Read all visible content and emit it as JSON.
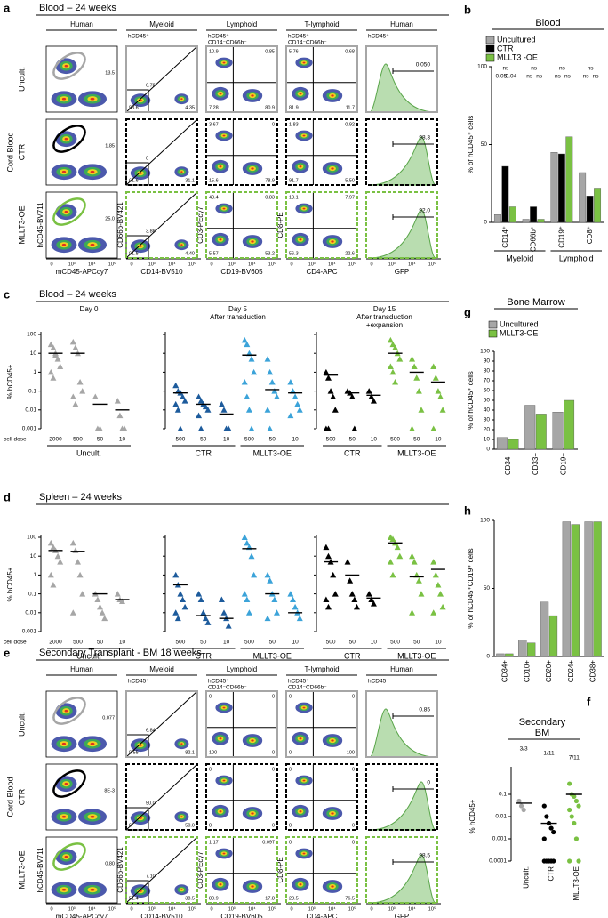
{
  "flow_a": {
    "letter": "a",
    "title": "Blood – 24 weeks",
    "group_label": "Cord Blood",
    "ticks": [
      "0",
      "10³",
      "10⁴",
      "10⁵"
    ],
    "columns": [
      {
        "header": "Human",
        "x_label": "mCD45-APCcy7",
        "y_label": "hCD45-BV711"
      },
      {
        "header": "Myeloid",
        "x_label": "CD14-BV510",
        "y_label": "CD66b-BV421",
        "gate": [
          "hCD45⁺"
        ]
      },
      {
        "header": "Lymphoid",
        "x_label": "CD19-BV605",
        "y_label": "CD3-PEcy7",
        "gate": [
          "hCD45⁺",
          "CD14⁻CD66b⁻"
        ]
      },
      {
        "header": "T-lymphoid",
        "x_label": "CD4-APC",
        "y_label": "CD8-PE",
        "gate": [
          "hCD45⁺",
          "CD14⁻CD66b⁻"
        ]
      },
      {
        "header": "Human",
        "x_label": "GFP",
        "gate": [
          "hCD45⁺"
        ]
      }
    ],
    "rows": [
      {
        "label": "Uncult.",
        "color": "#a6a6a6",
        "values": [
          [
            "13.5"
          ],
          [
            "6.78",
            "88.6",
            "4.35"
          ],
          [
            "10.9",
            "0.85",
            "7.28",
            "80.9"
          ],
          [
            "5.76",
            "0.68",
            "81.9",
            "11.7"
          ],
          [
            "0.050"
          ]
        ]
      },
      {
        "label": "CTR",
        "color": "#000000",
        "values": [
          [
            "1.85"
          ],
          [
            "0",
            "61.6",
            "31.1"
          ],
          [
            "3.67",
            "0",
            "15.6",
            "78.9"
          ],
          [
            "1.83",
            "0.92",
            "91.7",
            "5.50"
          ],
          [
            "98.3"
          ]
        ]
      },
      {
        "label": "MLLT3-OE",
        "color": "#7ac143",
        "values": [
          [
            "25.0"
          ],
          [
            "3.88",
            "91.5",
            "4.40"
          ],
          [
            "40.4",
            "0.83",
            "5.57",
            "53.2"
          ],
          [
            "13.1",
            "7.97",
            "56.3",
            "22.6"
          ],
          [
            "92.0"
          ]
        ]
      }
    ]
  },
  "bars_b": {
    "letter": "b",
    "title": "Blood",
    "ylabel": "% of hCD45⁺ cells",
    "ylim": [
      0,
      100
    ],
    "yticks": [
      0,
      50,
      100
    ],
    "categories": [
      "CD14⁺",
      "CD66b⁺",
      "CD19⁺",
      "CD8⁺"
    ],
    "groups": [
      "Myeloid",
      "Lymphoid"
    ],
    "series": [
      {
        "name": "Uncultured",
        "color": "#a6a6a6",
        "values": [
          5,
          2,
          45,
          32
        ]
      },
      {
        "name": "CTR",
        "color": "#000000",
        "values": [
          36,
          10,
          44,
          17
        ]
      },
      {
        "name": "MLLT3 -OE",
        "color": "#7ac143",
        "values": [
          10,
          2,
          55,
          22
        ]
      }
    ],
    "annotations": [
      [
        "ns",
        "0.05",
        "0.04"
      ],
      [
        "ns",
        "ns",
        "ns"
      ],
      [
        "ns",
        "ns",
        "ns"
      ],
      [
        "ns",
        "ns",
        "ns"
      ]
    ]
  },
  "dots_c": {
    "letter": "c",
    "title": "Blood – 24 weeks",
    "ylabel": "% hCD45+",
    "dose_label": "cell dose",
    "log": true,
    "ylim": [
      0.001,
      100
    ],
    "yticks": [
      0.001,
      0.01,
      0.1,
      1,
      10,
      100
    ],
    "panels": [
      {
        "title": [
          "Day 0"
        ],
        "groups": [
          {
            "name": "Uncult.",
            "color": "#a6a6a6",
            "doses": [
              "2000",
              "500",
              "50",
              "10"
            ],
            "points": [
              [
                30,
                20,
                10,
                5,
                2,
                1,
                0.5,
                8
              ],
              [
                40,
                20,
                10,
                0.3,
                0.1,
                0.05,
                0.02
              ],
              [
                0.05,
                0.001,
                0.001
              ],
              [
                0.03,
                0.005,
                0.001,
                0.001
              ]
            ],
            "medians": [
              10,
              10,
              0.02,
              0.01
            ]
          }
        ]
      },
      {
        "title": [
          "Day 5",
          "After transduction"
        ],
        "groups": [
          {
            "name": "CTR",
            "color": "#1d5b9c",
            "doses": [
              "500",
              "50",
              "10"
            ],
            "points": [
              [
                0.2,
                0.1,
                0.08,
                0.05,
                0.03,
                0.02,
                0.01,
                0.001
              ],
              [
                0.05,
                0.03,
                0.02,
                0.015,
                0.01,
                0.005,
                0.001
              ],
              [
                0.02,
                0.01,
                0.001,
                0.001
              ]
            ],
            "medians": [
              0.08,
              0.02,
              0.006
            ]
          },
          {
            "name": "MLLT3-OE",
            "color": "#3ba3d9",
            "doses": [
              "500",
              "50",
              "10"
            ],
            "points": [
              [
                50,
                30,
                10,
                5,
                1,
                0.3,
                0.05,
                0.01,
                0.001
              ],
              [
                5,
                1,
                0.3,
                0.1,
                0.05,
                0.01,
                0.001
              ],
              [
                0.3,
                0.1,
                0.05,
                0.02,
                0.01,
                0.005
              ]
            ],
            "medians": [
              8,
              0.12,
              0.08
            ]
          }
        ]
      },
      {
        "title": [
          "Day 15",
          "After transduction",
          "+expansion"
        ],
        "groups": [
          {
            "name": "CTR",
            "color": "#000000",
            "doses": [
              "500",
              "50",
              "10"
            ],
            "points": [
              [
                1,
                0.5,
                0.1,
                0.05,
                0.01,
                0.001,
                0.001
              ],
              [
                0.1,
                0.08,
                0.05,
                0.001
              ],
              [
                0.1,
                0.05,
                0.03
              ]
            ],
            "medians": [
              0.7,
              0.08,
              0.06
            ]
          },
          {
            "name": "MLLT3-OE",
            "color": "#7ac143",
            "doses": [
              "500",
              "50",
              "10"
            ],
            "points": [
              [
                50,
                30,
                20,
                10,
                5,
                2,
                1,
                0.3
              ],
              [
                5,
                2,
                0.5,
                0.1,
                0.01,
                0.001
              ],
              [
                2,
                0.5,
                0.1,
                0.05,
                0.01,
                0.001
              ]
            ],
            "medians": [
              10,
              1,
              0.3
            ]
          }
        ]
      }
    ]
  },
  "dots_d": {
    "letter": "d",
    "title": "Spleen – 24 weeks",
    "ylabel": "% hCD45+",
    "dose_label": "cell dose",
    "log": true,
    "ylim": [
      0.001,
      100
    ],
    "yticks": [
      0.001,
      0.01,
      0.1,
      1,
      10,
      100
    ],
    "panels": [
      {
        "groups": [
          {
            "name": "Uncult.",
            "color": "#a6a6a6",
            "doses": [
              "2000",
              "500",
              "50",
              "10"
            ],
            "points": [
              [
                50,
                30,
                20,
                10,
                5,
                1,
                0.3
              ],
              [
                50,
                20,
                5,
                1,
                0.1,
                0.01
              ],
              [
                0.1,
                0.05,
                0.02,
                0.01,
                0.005
              ],
              [
                0.1,
                0.05,
                0.04
              ]
            ],
            "medians": [
              20,
              18,
              0.1,
              0.05
            ]
          }
        ]
      },
      {
        "groups": [
          {
            "name": "CTR",
            "color": "#1d5b9c",
            "doses": [
              "500",
              "50",
              "10"
            ],
            "points": [
              [
                1,
                0.3,
                0.1,
                0.05,
                0.02,
                0.01,
                0.005
              ],
              [
                0.1,
                0.05,
                0.01,
                0.005,
                0.003
              ],
              [
                0.05,
                0.01,
                0.005,
                0.002
              ]
            ],
            "medians": [
              0.3,
              0.007,
              0.005
            ]
          },
          {
            "name": "MLLT3-OE",
            "color": "#3ba3d9",
            "doses": [
              "500",
              "50",
              "10"
            ],
            "points": [
              [
                100,
                50,
                30,
                10,
                1,
                0.1,
                0.05,
                0.01
              ],
              [
                1,
                0.5,
                0.1,
                0.05,
                0.01,
                0.005
              ],
              [
                0.1,
                0.05,
                0.02,
                0.01,
                0.005
              ]
            ],
            "medians": [
              25,
              0.1,
              0.01
            ]
          }
        ]
      },
      {
        "groups": [
          {
            "name": "CTR",
            "color": "#000000",
            "doses": [
              "500",
              "50",
              "10"
            ],
            "points": [
              [
                30,
                10,
                5,
                1,
                0.1,
                0.05,
                0.02
              ],
              [
                5,
                0.5,
                0.1,
                0.05,
                0.02
              ],
              [
                0.1,
                0.05,
                0.03
              ]
            ],
            "medians": [
              5,
              1,
              0.06
            ]
          },
          {
            "name": "MLLT3-OE",
            "color": "#7ac143",
            "doses": [
              "500",
              "50",
              "10"
            ],
            "points": [
              [
                100,
                80,
                50,
                30,
                10,
                5,
                1
              ],
              [
                10,
                5,
                1,
                0.5,
                0.1,
                0.01
              ],
              [
                5,
                1,
                0.3,
                0.1,
                0.02,
                0.01
              ]
            ],
            "medians": [
              50,
              0.8,
              2
            ]
          }
        ]
      }
    ]
  },
  "bars_g": {
    "letter": "g",
    "title": "Bone Marrow",
    "ylabel": "% of hCD45⁺ cells",
    "ylim": [
      0,
      100
    ],
    "yticks": [
      0,
      10,
      20,
      30,
      40,
      50,
      60,
      70,
      80,
      90,
      100
    ],
    "categories": [
      "CD34+",
      "CD33+",
      "CD19+"
    ],
    "series": [
      {
        "name": "Uncultured",
        "color": "#a6a6a6",
        "values": [
          12,
          45,
          38
        ]
      },
      {
        "name": "MLLT3-OE",
        "color": "#7ac143",
        "values": [
          10,
          36,
          50
        ]
      }
    ]
  },
  "bars_h": {
    "letter": "h",
    "ylabel": "% of hCD45⁺CD19⁺ cells",
    "ylim": [
      0,
      100
    ],
    "yticks": [
      0,
      50,
      100
    ],
    "categories": [
      "CD34+",
      "CD10+",
      "CD20+",
      "CD24+",
      "CD38+"
    ],
    "series": [
      {
        "color": "#a6a6a6",
        "values": [
          2,
          12,
          40,
          99,
          99
        ]
      },
      {
        "color": "#7ac143",
        "values": [
          2,
          10,
          30,
          97,
          99
        ]
      }
    ]
  },
  "flow_e": {
    "letter": "e",
    "title": "Secondary Transplant - BM 18 weeks",
    "group_label": "Cord Blood",
    "ticks": [
      "0",
      "10³",
      "10⁴",
      "10⁵"
    ],
    "columns": [
      {
        "header": "Human",
        "x_label": "mCD45-APCcy7",
        "y_label": "hCD45-BV711"
      },
      {
        "header": "Myeloid",
        "x_label": "CD14-BV510",
        "y_label": "CD66b-BV421",
        "gate": [
          "hCD45⁺"
        ]
      },
      {
        "header": "Lymphoid",
        "x_label": "CD19-BV605",
        "y_label": "CD3-PEcy7",
        "gate": [
          "hCD45⁺",
          "CD14⁻CD66b⁻"
        ]
      },
      {
        "header": "T-lymphoid",
        "x_label": "CD4-APC",
        "y_label": "CD8-PE",
        "gate": [
          "hCD45⁺",
          "CD14⁻CD66b⁻"
        ]
      },
      {
        "header": "Human",
        "x_label": "GFP",
        "gate": [
          "hCD45"
        ]
      }
    ],
    "rows": [
      {
        "label": "Uncult.",
        "color": "#a6a6a6",
        "values": [
          [
            "0.077"
          ],
          [
            "6.84",
            "8.55",
            "82.1"
          ],
          [
            "0",
            "0",
            "100",
            "0"
          ],
          [
            "0",
            "0",
            "0",
            "100"
          ],
          [
            "0.85"
          ]
        ]
      },
      {
        "label": "CTR",
        "color": "#000000",
        "values": [
          [
            "8E-3"
          ],
          [
            "50.0",
            "0",
            "50.0"
          ],
          [
            "0",
            "0",
            "0",
            "0"
          ],
          [
            "0",
            "0",
            "0",
            "0"
          ],
          [
            "0"
          ]
        ]
      },
      {
        "label": "MLLT3-OE",
        "color": "#7ac143",
        "values": [
          [
            "0.80"
          ],
          [
            "7.10",
            "51.4",
            "38.5"
          ],
          [
            "1.17",
            "0.097",
            "80.9",
            "17.8"
          ],
          [
            "0",
            "0",
            "23.5",
            "76.5"
          ],
          [
            "98.5"
          ]
        ]
      }
    ]
  },
  "dots_f": {
    "letter": "f",
    "title": [
      "Secondary",
      "BM"
    ],
    "ylabel": "% hCD45+",
    "log": true,
    "ylim": [
      0.0001,
      1
    ],
    "yticks": [
      0.0001,
      0.001,
      0.01,
      0.1
    ],
    "groups": [
      {
        "name": "Uncult.",
        "color": "#a6a6a6",
        "fraction": "3/3",
        "points": [
          0.05,
          0.03,
          0.02
        ],
        "median": 0.04
      },
      {
        "name": "CTR",
        "color": "#000000",
        "fraction": "1/11",
        "points": [
          0.03,
          0.01,
          0.005,
          0.003,
          0.002,
          0.001,
          0.0001,
          0.0001,
          0.0001,
          0.0001,
          0.0001
        ],
        "median": 0.005
      },
      {
        "name": "MLLT3-OE",
        "color": "#7ac143",
        "fraction": "7/11",
        "points": [
          0.3,
          0.1,
          0.08,
          0.05,
          0.03,
          0.02,
          0.01,
          0.005,
          0.001,
          0.0001,
          0.0001
        ],
        "median": 0.1
      }
    ]
  }
}
